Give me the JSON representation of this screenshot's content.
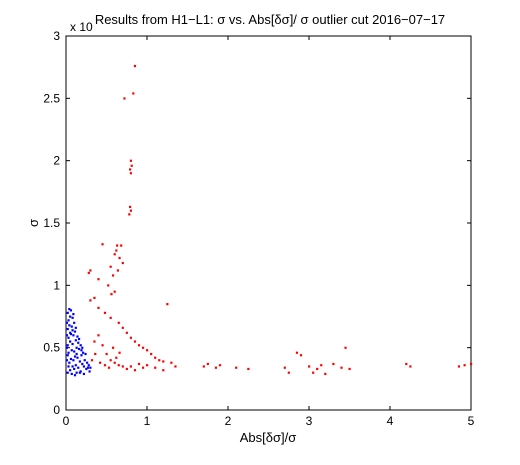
{
  "chart_data": {
    "type": "scatter",
    "title": "Results from H1−L1: σ vs. Abs[δσ]/ σ outlier cut 2016−07−17",
    "xlabel": "Abs[δσ]/σ",
    "ylabel": "σ",
    "y_exponent_label": "x 10",
    "xlim": [
      0,
      5
    ],
    "ylim": [
      0,
      3
    ],
    "x_ticks": [
      "0",
      "1",
      "2",
      "3",
      "4",
      "5"
    ],
    "y_ticks": [
      "0",
      "0.5",
      "1",
      "1.5",
      "2",
      "2.5",
      "3"
    ],
    "grid": false,
    "series": [
      {
        "color": "#0000ff",
        "points": [
          [
            0.02,
            0.3
          ],
          [
            0.05,
            0.32
          ],
          [
            0.08,
            0.35
          ],
          [
            0.1,
            0.33
          ],
          [
            0.12,
            0.36
          ],
          [
            0.15,
            0.34
          ],
          [
            0.18,
            0.31
          ],
          [
            0.2,
            0.37
          ],
          [
            0.22,
            0.35
          ],
          [
            0.25,
            0.33
          ],
          [
            0.28,
            0.36
          ],
          [
            0.3,
            0.34
          ],
          [
            0.04,
            0.38
          ],
          [
            0.06,
            0.41
          ],
          [
            0.09,
            0.4
          ],
          [
            0.11,
            0.43
          ],
          [
            0.14,
            0.42
          ],
          [
            0.17,
            0.39
          ],
          [
            0.19,
            0.44
          ],
          [
            0.23,
            0.4
          ],
          [
            0.03,
            0.46
          ],
          [
            0.07,
            0.48
          ],
          [
            0.1,
            0.47
          ],
          [
            0.13,
            0.5
          ],
          [
            0.16,
            0.49
          ],
          [
            0.21,
            0.46
          ],
          [
            0.24,
            0.45
          ],
          [
            0.02,
            0.52
          ],
          [
            0.05,
            0.55
          ],
          [
            0.08,
            0.53
          ],
          [
            0.12,
            0.56
          ],
          [
            0.15,
            0.54
          ],
          [
            0.18,
            0.52
          ],
          [
            0.03,
            0.58
          ],
          [
            0.06,
            0.61
          ],
          [
            0.09,
            0.6
          ],
          [
            0.11,
            0.63
          ],
          [
            0.14,
            0.59
          ],
          [
            0.02,
            0.65
          ],
          [
            0.04,
            0.68
          ],
          [
            0.07,
            0.67
          ],
          [
            0.1,
            0.7
          ],
          [
            0.12,
            0.66
          ],
          [
            0.03,
            0.72
          ],
          [
            0.05,
            0.75
          ],
          [
            0.08,
            0.74
          ],
          [
            0.02,
            0.78
          ],
          [
            0.04,
            0.81
          ],
          [
            0.06,
            0.8
          ],
          [
            0.09,
            0.77
          ],
          [
            0.01,
            0.4
          ],
          [
            0.01,
            0.5
          ],
          [
            0.01,
            0.6
          ],
          [
            0.01,
            0.7
          ],
          [
            0.02,
            0.44
          ],
          [
            0.03,
            0.35
          ],
          [
            0.13,
            0.3
          ],
          [
            0.26,
            0.38
          ],
          [
            0.29,
            0.31
          ],
          [
            0.16,
            0.57
          ],
          [
            0.2,
            0.5
          ],
          [
            0.07,
            0.29
          ],
          [
            0.11,
            0.28
          ],
          [
            0.17,
            0.3
          ],
          [
            0.22,
            0.29
          ],
          [
            0.05,
            0.62
          ],
          [
            0.08,
            0.64
          ],
          [
            0.13,
            0.45
          ],
          [
            0.19,
            0.48
          ],
          [
            0.27,
            0.34
          ]
        ]
      },
      {
        "color": "#ff0000",
        "points": [
          [
            0.85,
            2.76
          ],
          [
            0.72,
            2.5
          ],
          [
            0.83,
            2.54
          ],
          [
            0.8,
            2.0
          ],
          [
            0.81,
            1.96
          ],
          [
            0.79,
            1.93
          ],
          [
            0.8,
            1.9
          ],
          [
            0.79,
            1.63
          ],
          [
            0.8,
            1.6
          ],
          [
            0.78,
            1.57
          ],
          [
            0.45,
            1.33
          ],
          [
            0.63,
            1.32
          ],
          [
            0.68,
            1.32
          ],
          [
            0.62,
            1.28
          ],
          [
            0.6,
            1.25
          ],
          [
            0.66,
            1.22
          ],
          [
            0.7,
            1.18
          ],
          [
            0.4,
            1.05
          ],
          [
            0.55,
            1.15
          ],
          [
            0.58,
            1.08
          ],
          [
            0.3,
            1.12
          ],
          [
            0.52,
            1.0
          ],
          [
            0.56,
            0.93
          ],
          [
            0.6,
            0.95
          ],
          [
            0.64,
            1.12
          ],
          [
            0.28,
            1.1
          ],
          [
            1.25,
            0.85
          ],
          [
            0.35,
            0.9
          ],
          [
            0.3,
            0.88
          ],
          [
            0.4,
            0.82
          ],
          [
            0.48,
            0.78
          ],
          [
            0.55,
            0.74
          ],
          [
            0.65,
            0.7
          ],
          [
            0.7,
            0.66
          ],
          [
            0.75,
            0.62
          ],
          [
            0.8,
            0.58
          ],
          [
            0.85,
            0.55
          ],
          [
            0.9,
            0.52
          ],
          [
            0.95,
            0.5
          ],
          [
            1.0,
            0.48
          ],
          [
            1.05,
            0.45
          ],
          [
            1.1,
            0.42
          ],
          [
            1.15,
            0.4
          ],
          [
            1.2,
            0.39
          ],
          [
            1.3,
            0.38
          ],
          [
            0.35,
            0.55
          ],
          [
            0.4,
            0.6
          ],
          [
            0.45,
            0.52
          ],
          [
            0.5,
            0.45
          ],
          [
            0.55,
            0.4
          ],
          [
            0.6,
            0.38
          ],
          [
            0.65,
            0.36
          ],
          [
            0.7,
            0.35
          ],
          [
            0.75,
            0.33
          ],
          [
            0.8,
            0.35
          ],
          [
            0.85,
            0.32
          ],
          [
            0.9,
            0.37
          ],
          [
            0.95,
            0.34
          ],
          [
            1.0,
            0.36
          ],
          [
            1.1,
            0.34
          ],
          [
            1.2,
            0.32
          ],
          [
            1.35,
            0.35
          ],
          [
            0.32,
            0.4
          ],
          [
            0.36,
            0.45
          ],
          [
            0.42,
            0.38
          ],
          [
            0.48,
            0.36
          ],
          [
            0.53,
            0.34
          ],
          [
            0.58,
            0.5
          ],
          [
            0.62,
            0.42
          ],
          [
            0.66,
            0.46
          ],
          [
            1.7,
            0.35
          ],
          [
            1.75,
            0.37
          ],
          [
            1.85,
            0.34
          ],
          [
            1.9,
            0.36
          ],
          [
            2.1,
            0.34
          ],
          [
            2.25,
            0.33
          ],
          [
            2.7,
            0.34
          ],
          [
            2.75,
            0.3
          ],
          [
            2.85,
            0.46
          ],
          [
            2.9,
            0.44
          ],
          [
            3.0,
            0.35
          ],
          [
            3.05,
            0.3
          ],
          [
            3.1,
            0.33
          ],
          [
            3.15,
            0.36
          ],
          [
            3.2,
            0.29
          ],
          [
            3.3,
            0.37
          ],
          [
            3.4,
            0.34
          ],
          [
            3.45,
            0.5
          ],
          [
            3.5,
            0.33
          ],
          [
            4.2,
            0.37
          ],
          [
            4.25,
            0.35
          ],
          [
            4.85,
            0.35
          ],
          [
            4.92,
            0.36
          ],
          [
            5.0,
            0.37
          ]
        ]
      }
    ]
  }
}
